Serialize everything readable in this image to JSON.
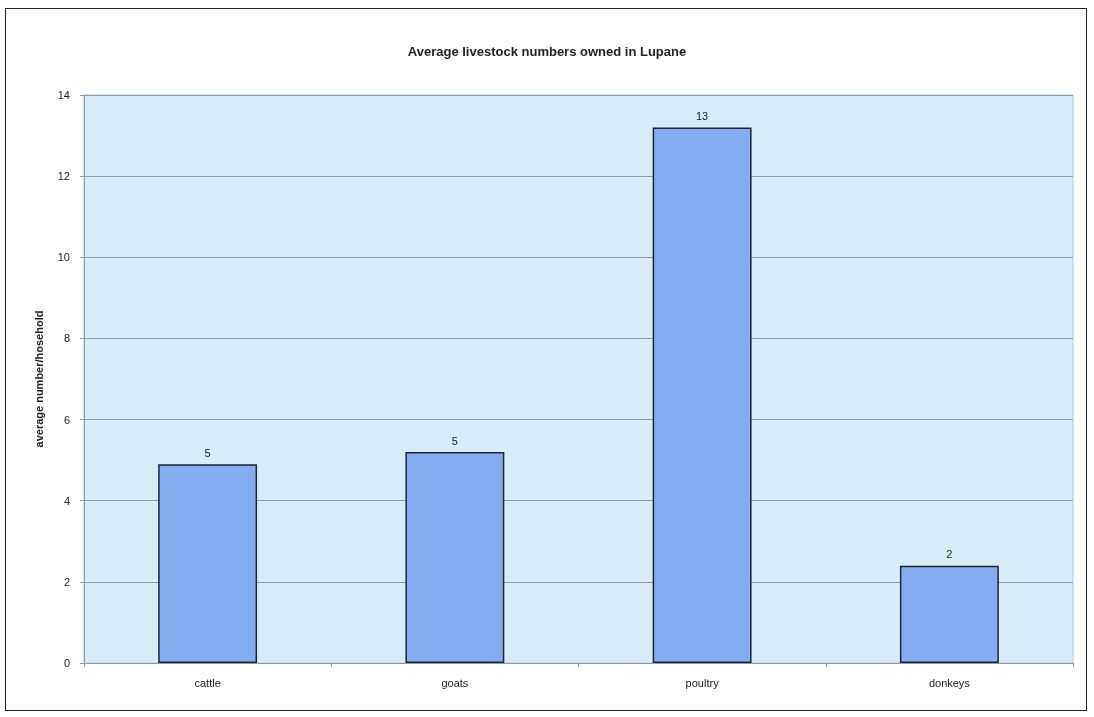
{
  "chart_data": {
    "type": "bar",
    "title": "Average livestock numbers owned in Lupane",
    "ylabel": "average number/hosehold",
    "categories": [
      "cattle",
      "goats",
      "poultry",
      "donkeys"
    ],
    "values": [
      4.9,
      5.2,
      13.2,
      2.4
    ],
    "color": "#84acf0",
    "value_labels": [
      "5",
      "5",
      "13",
      "2"
    ],
    "ylim": [
      0,
      14
    ],
    "yticks": [
      0,
      2,
      4,
      6,
      8,
      10,
      12,
      14
    ],
    "grid": "y"
  }
}
